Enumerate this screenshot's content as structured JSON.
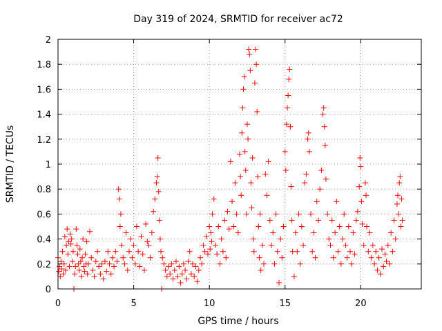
{
  "chart_data": {
    "type": "scatter",
    "title": "Day 319 of 2024, SRMTID for receiver ac72",
    "xlabel": "GPS time / hours",
    "ylabel": "SRMTID / TECUs",
    "xlim": [
      0,
      24
    ],
    "ylim": [
      0,
      2
    ],
    "xticks": [
      0,
      5,
      10,
      15,
      20
    ],
    "yticks": [
      0,
      0.2,
      0.4,
      0.6,
      0.8,
      1,
      1.2,
      1.4,
      1.6,
      1.8,
      2
    ],
    "grid": true,
    "marker": "+",
    "color": "#ff0000",
    "series": [
      {
        "name": "SRMTID",
        "points": [
          [
            0.0,
            0.25
          ],
          [
            0.05,
            0.14
          ],
          [
            0.1,
            0.18
          ],
          [
            0.15,
            0.1
          ],
          [
            0.2,
            0.22
          ],
          [
            0.25,
            0.16
          ],
          [
            0.3,
            0.3
          ],
          [
            0.35,
            0.12
          ],
          [
            0.4,
            0.2
          ],
          [
            0.45,
            0.42
          ],
          [
            0.5,
            0.15
          ],
          [
            0.55,
            0.35
          ],
          [
            0.6,
            0.48
          ],
          [
            0.65,
            0.28
          ],
          [
            0.7,
            0.38
          ],
          [
            0.75,
            0.18
          ],
          [
            0.8,
            0.44
          ],
          [
            0.85,
            0.36
          ],
          [
            0.9,
            0.4
          ],
          [
            0.95,
            0.22
          ],
          [
            1.0,
            0.3
          ],
          [
            1.05,
            0.0
          ],
          [
            1.1,
            0.12
          ],
          [
            1.15,
            0.18
          ],
          [
            1.2,
            0.48
          ],
          [
            1.25,
            0.35
          ],
          [
            1.3,
            0.28
          ],
          [
            1.35,
            0.2
          ],
          [
            1.4,
            0.15
          ],
          [
            1.45,
            0.32
          ],
          [
            1.5,
            0.22
          ],
          [
            1.55,
            0.1
          ],
          [
            1.6,
            0.25
          ],
          [
            1.65,
            0.4
          ],
          [
            1.7,
            0.18
          ],
          [
            1.75,
            0.14
          ],
          [
            1.8,
            0.28
          ],
          [
            1.85,
            0.2
          ],
          [
            1.9,
            0.38
          ],
          [
            1.95,
            0.12
          ],
          [
            2.0,
            0.2
          ],
          [
            2.1,
            0.46
          ],
          [
            2.2,
            0.25
          ],
          [
            2.3,
            0.15
          ],
          [
            2.4,
            0.1
          ],
          [
            2.5,
            0.22
          ],
          [
            2.6,
            0.3
          ],
          [
            2.7,
            0.18
          ],
          [
            2.8,
            0.12
          ],
          [
            2.9,
            0.2
          ],
          [
            3.0,
            0.08
          ],
          [
            3.1,
            0.22
          ],
          [
            3.2,
            0.14
          ],
          [
            3.3,
            0.3
          ],
          [
            3.4,
            0.2
          ],
          [
            3.5,
            0.12
          ],
          [
            3.6,
            0.25
          ],
          [
            3.7,
            0.18
          ],
          [
            3.8,
            0.3
          ],
          [
            3.9,
            0.22
          ],
          [
            4.0,
            0.8
          ],
          [
            4.05,
            0.72
          ],
          [
            4.1,
            0.5
          ],
          [
            4.15,
            0.6
          ],
          [
            4.2,
            0.35
          ],
          [
            4.3,
            0.25
          ],
          [
            4.4,
            0.2
          ],
          [
            4.5,
            0.45
          ],
          [
            4.6,
            0.15
          ],
          [
            4.7,
            0.3
          ],
          [
            4.8,
            0.4
          ],
          [
            4.9,
            0.25
          ],
          [
            5.0,
            0.35
          ],
          [
            5.1,
            0.2
          ],
          [
            5.2,
            0.5
          ],
          [
            5.3,
            0.3
          ],
          [
            5.4,
            0.18
          ],
          [
            5.5,
            0.42
          ],
          [
            5.6,
            0.28
          ],
          [
            5.7,
            0.15
          ],
          [
            5.8,
            0.52
          ],
          [
            5.9,
            0.38
          ],
          [
            6.0,
            0.35
          ],
          [
            6.1,
            0.25
          ],
          [
            6.2,
            0.45
          ],
          [
            6.3,
            0.62
          ],
          [
            6.4,
            0.72
          ],
          [
            6.5,
            0.85
          ],
          [
            6.55,
            0.9
          ],
          [
            6.6,
            1.05
          ],
          [
            6.65,
            0.78
          ],
          [
            6.7,
            0.55
          ],
          [
            6.75,
            0.4
          ],
          [
            6.8,
            0.3
          ],
          [
            6.85,
            0.0
          ],
          [
            6.9,
            0.25
          ],
          [
            7.0,
            0.2
          ],
          [
            7.1,
            0.15
          ],
          [
            7.2,
            0.1
          ],
          [
            7.3,
            0.18
          ],
          [
            7.4,
            0.12
          ],
          [
            7.5,
            0.2
          ],
          [
            7.6,
            0.08
          ],
          [
            7.7,
            0.15
          ],
          [
            7.8,
            0.22
          ],
          [
            7.9,
            0.1
          ],
          [
            8.0,
            0.18
          ],
          [
            8.1,
            0.05
          ],
          [
            8.2,
            0.12
          ],
          [
            8.3,
            0.2
          ],
          [
            8.4,
            0.15
          ],
          [
            8.5,
            0.08
          ],
          [
            8.6,
            0.22
          ],
          [
            8.7,
            0.3
          ],
          [
            8.8,
            0.12
          ],
          [
            8.9,
            0.2
          ],
          [
            9.0,
            0.1
          ],
          [
            9.1,
            0.18
          ],
          [
            9.2,
            0.06
          ],
          [
            9.3,
            0.15
          ],
          [
            9.4,
            0.25
          ],
          [
            9.5,
            0.2
          ],
          [
            9.6,
            0.35
          ],
          [
            9.7,
            0.3
          ],
          [
            9.8,
            0.42
          ],
          [
            9.9,
            0.28
          ],
          [
            10.0,
            0.5
          ],
          [
            10.05,
            0.32
          ],
          [
            10.1,
            0.45
          ],
          [
            10.15,
            0.38
          ],
          [
            10.2,
            0.6
          ],
          [
            10.3,
            0.72
          ],
          [
            10.4,
            0.35
          ],
          [
            10.5,
            0.28
          ],
          [
            10.6,
            0.5
          ],
          [
            10.7,
            0.2
          ],
          [
            10.8,
            0.4
          ],
          [
            10.9,
            0.3
          ],
          [
            11.0,
            0.55
          ],
          [
            11.1,
            0.25
          ],
          [
            11.2,
            0.62
          ],
          [
            11.3,
            0.48
          ],
          [
            11.4,
            1.02
          ],
          [
            11.5,
            0.7
          ],
          [
            11.6,
            0.5
          ],
          [
            11.7,
            0.85
          ],
          [
            11.8,
            0.6
          ],
          [
            11.9,
            0.45
          ],
          [
            12.0,
            1.08
          ],
          [
            12.05,
            0.9
          ],
          [
            12.1,
            0.75
          ],
          [
            12.15,
            1.25
          ],
          [
            12.2,
            1.45
          ],
          [
            12.25,
            1.6
          ],
          [
            12.3,
            1.7
          ],
          [
            12.35,
            1.1
          ],
          [
            12.4,
            0.95
          ],
          [
            12.45,
            0.6
          ],
          [
            12.5,
            1.32
          ],
          [
            12.55,
            1.2
          ],
          [
            12.6,
            1.92
          ],
          [
            12.65,
            1.88
          ],
          [
            12.7,
            1.75
          ],
          [
            12.75,
            0.85
          ],
          [
            12.8,
            0.65
          ],
          [
            12.85,
            1.05
          ],
          [
            12.9,
            0.4
          ],
          [
            12.95,
            0.3
          ],
          [
            13.0,
            1.65
          ],
          [
            13.05,
            1.92
          ],
          [
            13.1,
            1.8
          ],
          [
            13.15,
            1.42
          ],
          [
            13.2,
            0.9
          ],
          [
            13.25,
            0.5
          ],
          [
            13.3,
            0.25
          ],
          [
            13.35,
            0.6
          ],
          [
            13.4,
            0.15
          ],
          [
            13.5,
            0.35
          ],
          [
            13.6,
            0.2
          ],
          [
            13.7,
            0.92
          ],
          [
            13.8,
            0.75
          ],
          [
            13.9,
            1.02
          ],
          [
            14.0,
            0.55
          ],
          [
            14.1,
            0.35
          ],
          [
            14.2,
            0.45
          ],
          [
            14.3,
            0.2
          ],
          [
            14.4,
            0.6
          ],
          [
            14.5,
            0.3
          ],
          [
            14.6,
            0.05
          ],
          [
            14.7,
            0.4
          ],
          [
            14.8,
            0.25
          ],
          [
            14.9,
            0.5
          ],
          [
            15.0,
            1.1
          ],
          [
            15.05,
            0.95
          ],
          [
            15.1,
            1.32
          ],
          [
            15.15,
            1.45
          ],
          [
            15.2,
            1.55
          ],
          [
            15.25,
            1.68
          ],
          [
            15.3,
            1.76
          ],
          [
            15.35,
            1.3
          ],
          [
            15.4,
            0.82
          ],
          [
            15.45,
            0.55
          ],
          [
            15.5,
            0.3
          ],
          [
            15.6,
            0.1
          ],
          [
            15.7,
            0.45
          ],
          [
            15.8,
            0.3
          ],
          [
            15.9,
            0.6
          ],
          [
            16.0,
            0.2
          ],
          [
            16.1,
            0.5
          ],
          [
            16.2,
            0.35
          ],
          [
            16.3,
            0.85
          ],
          [
            16.4,
            0.92
          ],
          [
            16.5,
            1.2
          ],
          [
            16.55,
            1.25
          ],
          [
            16.6,
            1.1
          ],
          [
            16.7,
            0.6
          ],
          [
            16.8,
            0.3
          ],
          [
            16.9,
            0.45
          ],
          [
            17.0,
            0.25
          ],
          [
            17.1,
            0.7
          ],
          [
            17.2,
            0.55
          ],
          [
            17.3,
            0.8
          ],
          [
            17.4,
            0.95
          ],
          [
            17.5,
            1.4
          ],
          [
            17.55,
            1.45
          ],
          [
            17.6,
            1.3
          ],
          [
            17.65,
            1.15
          ],
          [
            17.7,
            0.88
          ],
          [
            17.8,
            0.6
          ],
          [
            17.9,
            0.4
          ],
          [
            18.0,
            0.35
          ],
          [
            18.1,
            0.55
          ],
          [
            18.2,
            0.25
          ],
          [
            18.3,
            0.45
          ],
          [
            18.4,
            0.7
          ],
          [
            18.5,
            0.3
          ],
          [
            18.6,
            0.5
          ],
          [
            18.7,
            0.2
          ],
          [
            18.8,
            0.4
          ],
          [
            18.9,
            0.6
          ],
          [
            19.0,
            0.35
          ],
          [
            19.1,
            0.25
          ],
          [
            19.2,
            0.5
          ],
          [
            19.3,
            0.3
          ],
          [
            19.4,
            0.2
          ],
          [
            19.5,
            0.45
          ],
          [
            19.6,
            0.28
          ],
          [
            19.7,
            0.55
          ],
          [
            19.8,
            0.62
          ],
          [
            19.9,
            0.82
          ],
          [
            19.95,
            1.05
          ],
          [
            20.0,
            0.98
          ],
          [
            20.05,
            0.7
          ],
          [
            20.1,
            0.52
          ],
          [
            20.2,
            0.35
          ],
          [
            20.3,
            0.85
          ],
          [
            20.35,
            0.75
          ],
          [
            20.4,
            0.5
          ],
          [
            20.5,
            0.3
          ],
          [
            20.6,
            0.45
          ],
          [
            20.7,
            0.25
          ],
          [
            20.8,
            0.35
          ],
          [
            20.9,
            0.2
          ],
          [
            21.0,
            0.3
          ],
          [
            21.1,
            0.15
          ],
          [
            21.2,
            0.25
          ],
          [
            21.3,
            0.12
          ],
          [
            21.4,
            0.32
          ],
          [
            21.5,
            0.18
          ],
          [
            21.6,
            0.28
          ],
          [
            21.7,
            0.22
          ],
          [
            21.8,
            0.35
          ],
          [
            21.9,
            0.2
          ],
          [
            22.0,
            0.45
          ],
          [
            22.1,
            0.3
          ],
          [
            22.2,
            0.55
          ],
          [
            22.3,
            0.4
          ],
          [
            22.4,
            0.68
          ],
          [
            22.45,
            0.75
          ],
          [
            22.5,
            0.6
          ],
          [
            22.55,
            0.85
          ],
          [
            22.6,
            0.9
          ],
          [
            22.65,
            0.5
          ],
          [
            22.7,
            0.72
          ],
          [
            22.75,
            0.55
          ]
        ]
      }
    ]
  }
}
